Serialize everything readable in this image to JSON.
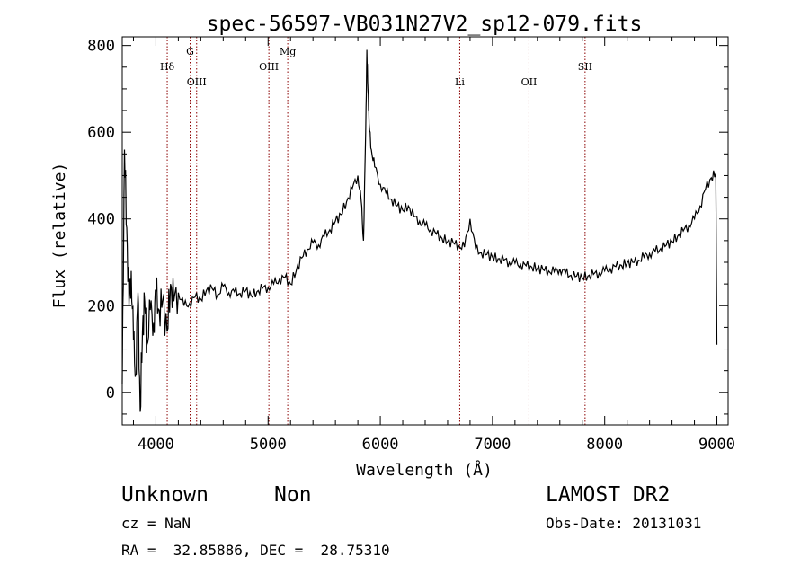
{
  "chart_data": {
    "type": "line",
    "title": "spec-56597-VB031N27V2_sp12-079.fits",
    "xlabel": "Wavelength (Å)",
    "ylabel": "Flux (relative)",
    "xlim": [
      3700,
      9100
    ],
    "ylim": [
      -75,
      820
    ],
    "x_ticks": [
      4000,
      5000,
      6000,
      7000,
      8000,
      9000
    ],
    "y_ticks": [
      0,
      200,
      400,
      600,
      800
    ],
    "grid": false,
    "line_color": "#000000",
    "spectrum_points": [
      [
        3700,
        20
      ],
      [
        3720,
        560
      ],
      [
        3740,
        380
      ],
      [
        3760,
        200
      ],
      [
        3780,
        280
      ],
      [
        3800,
        120
      ],
      [
        3820,
        40
      ],
      [
        3840,
        230
      ],
      [
        3860,
        -45
      ],
      [
        3880,
        140
      ],
      [
        3900,
        210
      ],
      [
        3920,
        110
      ],
      [
        3950,
        190
      ],
      [
        3980,
        160
      ],
      [
        4000,
        230
      ],
      [
        4030,
        190
      ],
      [
        4060,
        210
      ],
      [
        4100,
        140
      ],
      [
        4130,
        250
      ],
      [
        4160,
        210
      ],
      [
        4200,
        230
      ],
      [
        4250,
        200
      ],
      [
        4300,
        205
      ],
      [
        4350,
        220
      ],
      [
        4400,
        215
      ],
      [
        4450,
        235
      ],
      [
        4500,
        240
      ],
      [
        4550,
        225
      ],
      [
        4600,
        245
      ],
      [
        4650,
        230
      ],
      [
        4700,
        232
      ],
      [
        4750,
        228
      ],
      [
        4800,
        235
      ],
      [
        4850,
        222
      ],
      [
        4900,
        232
      ],
      [
        4950,
        240
      ],
      [
        5000,
        242
      ],
      [
        5050,
        250
      ],
      [
        5100,
        260
      ],
      [
        5150,
        265
      ],
      [
        5200,
        250
      ],
      [
        5250,
        280
      ],
      [
        5300,
        310
      ],
      [
        5350,
        330
      ],
      [
        5400,
        345
      ],
      [
        5450,
        340
      ],
      [
        5500,
        360
      ],
      [
        5550,
        375
      ],
      [
        5600,
        395
      ],
      [
        5650,
        410
      ],
      [
        5700,
        440
      ],
      [
        5750,
        470
      ],
      [
        5800,
        500
      ],
      [
        5830,
        440
      ],
      [
        5850,
        350
      ],
      [
        5870,
        600
      ],
      [
        5880,
        790
      ],
      [
        5890,
        700
      ],
      [
        5900,
        620
      ],
      [
        5920,
        560
      ],
      [
        5950,
        520
      ],
      [
        6000,
        480
      ],
      [
        6050,
        460
      ],
      [
        6100,
        445
      ],
      [
        6150,
        430
      ],
      [
        6200,
        420
      ],
      [
        6250,
        430
      ],
      [
        6300,
        405
      ],
      [
        6350,
        395
      ],
      [
        6400,
        385
      ],
      [
        6450,
        375
      ],
      [
        6500,
        365
      ],
      [
        6550,
        355
      ],
      [
        6600,
        348
      ],
      [
        6650,
        345
      ],
      [
        6700,
        338
      ],
      [
        6750,
        335
      ],
      [
        6800,
        400
      ],
      [
        6850,
        330
      ],
      [
        6900,
        322
      ],
      [
        6950,
        318
      ],
      [
        7000,
        312
      ],
      [
        7050,
        308
      ],
      [
        7100,
        305
      ],
      [
        7150,
        300
      ],
      [
        7200,
        298
      ],
      [
        7250,
        295
      ],
      [
        7300,
        292
      ],
      [
        7350,
        289
      ],
      [
        7400,
        286
      ],
      [
        7450,
        283
      ],
      [
        7500,
        280
      ],
      [
        7550,
        278
      ],
      [
        7600,
        285
      ],
      [
        7650,
        275
      ],
      [
        7700,
        270
      ],
      [
        7750,
        268
      ],
      [
        7800,
        265
      ],
      [
        7850,
        268
      ],
      [
        7900,
        272
      ],
      [
        7950,
        275
      ],
      [
        8000,
        280
      ],
      [
        8050,
        285
      ],
      [
        8100,
        290
      ],
      [
        8150,
        293
      ],
      [
        8200,
        298
      ],
      [
        8250,
        300
      ],
      [
        8300,
        305
      ],
      [
        8350,
        312
      ],
      [
        8400,
        320
      ],
      [
        8450,
        325
      ],
      [
        8500,
        332
      ],
      [
        8550,
        340
      ],
      [
        8600,
        348
      ],
      [
        8650,
        360
      ],
      [
        8700,
        372
      ],
      [
        8750,
        385
      ],
      [
        8800,
        400
      ],
      [
        8850,
        430
      ],
      [
        8900,
        470
      ],
      [
        8950,
        495
      ],
      [
        8990,
        505
      ],
      [
        9000,
        110
      ]
    ],
    "line_markers": [
      {
        "label": "Hδ",
        "x": 4101,
        "label_level": "mid"
      },
      {
        "label": "G",
        "x": 4305,
        "label_level": "high"
      },
      {
        "label": "OIII",
        "x": 4363,
        "label_level": "low"
      },
      {
        "label": "OIII",
        "x": 5007,
        "label_level": "mid"
      },
      {
        "label": "Mg",
        "x": 5175,
        "label_level": "high"
      },
      {
        "label": "Li",
        "x": 6708,
        "label_level": "low"
      },
      {
        "label": "OII",
        "x": 7325,
        "label_level": "low"
      },
      {
        "label": "SII",
        "x": 7825,
        "label_level": "mid"
      }
    ],
    "marker_color": "#8b0000"
  },
  "footer": {
    "object_class": "Unknown",
    "subclass": "Non",
    "survey": "LAMOST DR2",
    "cz": "cz = NaN",
    "obs_date": "Obs-Date: 20131031",
    "coords": "RA =  32.85886, DEC =  28.75310"
  }
}
